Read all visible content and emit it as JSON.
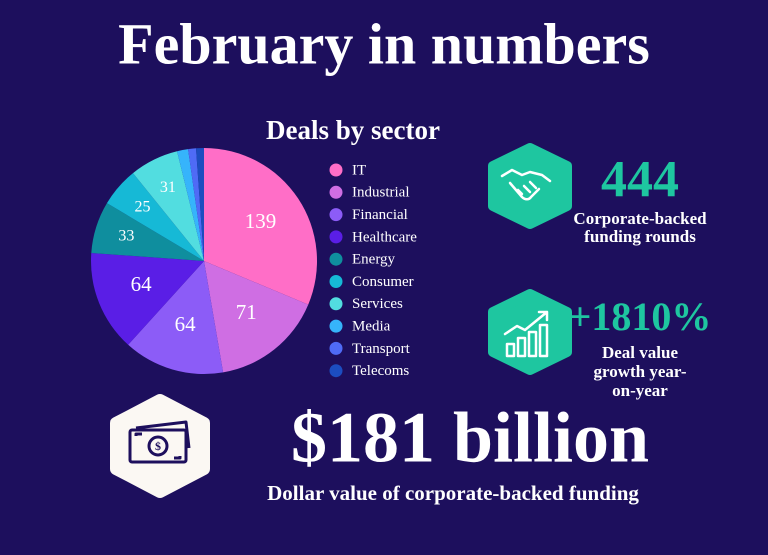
{
  "title": "February in numbers",
  "chart_data": {
    "type": "pie",
    "title": "Deals by sector",
    "categories": [
      "IT",
      "Industrial",
      "Financial",
      "Healthcare",
      "Energy",
      "Consumer",
      "Services",
      "Media",
      "Transport",
      "Telecoms"
    ],
    "values": [
      139,
      71,
      64,
      64,
      33,
      25,
      31,
      7,
      5,
      5
    ],
    "colors": [
      "#ff6ec7",
      "#cf6ee3",
      "#8c5cf7",
      "#5a1ee6",
      "#0f8e9e",
      "#16b9d6",
      "#52dde0",
      "#36b4fb",
      "#4f6bf6",
      "#1c4dc0"
    ]
  },
  "stats": [
    {
      "value": "444",
      "label": [
        "Corporate-backed",
        "funding rounds"
      ]
    },
    {
      "value": "+1810%",
      "label": [
        "Deal value",
        "growth year-",
        "on-year"
      ]
    }
  ],
  "headline": {
    "value": "$181 billion",
    "label": "Dollar value of corporate-backed funding"
  }
}
